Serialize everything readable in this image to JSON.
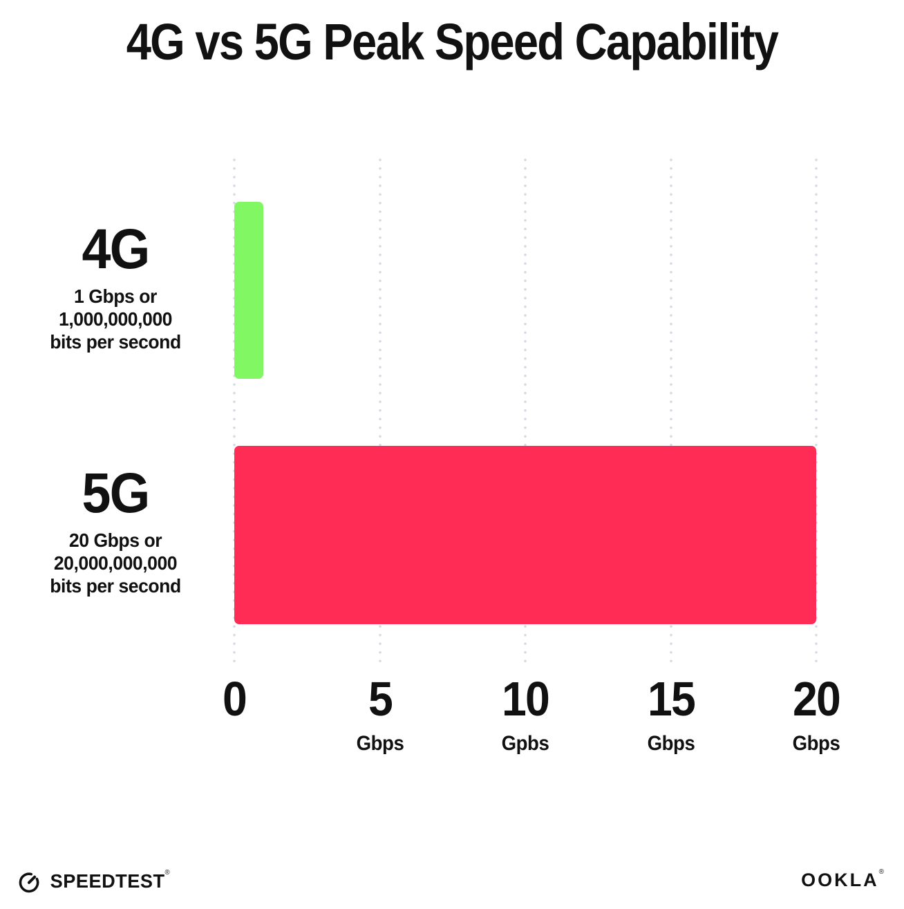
{
  "title": "4G vs 5G Peak Speed Capability",
  "chart_data": {
    "type": "bar",
    "orientation": "horizontal",
    "title": "4G vs 5G Peak Speed Capability",
    "xlim": [
      0,
      20
    ],
    "x_unit": "Gbps",
    "grid": "dotted vertical gridlines at 0, 5, 10, 15, 20",
    "legend": "none",
    "categories": [
      "4G",
      "5G"
    ],
    "values": [
      1,
      20
    ],
    "rows": [
      {
        "name": "4G",
        "desc_line1": "1 Gbps or",
        "desc_line2": "1,000,000,000",
        "desc_line3": "bits per second",
        "value": 1,
        "color": "#80f763"
      },
      {
        "name": "5G",
        "desc_line1": "20 Gbps or",
        "desc_line2": "20,000,000,000",
        "desc_line3": "bits per second",
        "value": 20,
        "color": "#ff2d55"
      }
    ],
    "x_ticks": [
      {
        "value": "0",
        "unit": ""
      },
      {
        "value": "5",
        "unit": "Gbps"
      },
      {
        "value": "10",
        "unit": "Gpbs"
      },
      {
        "value": "15",
        "unit": "Gbps"
      },
      {
        "value": "20",
        "unit": "Gbps"
      }
    ]
  },
  "footer": {
    "speedtest_label": "SPEEDTEST",
    "speedtest_mark": "®",
    "ookla_label": "OOKLA",
    "ookla_mark": "®"
  },
  "colors": {
    "bar_4g": "#80f763",
    "bar_5g": "#ff2d55",
    "gridline": "#d8dbe5",
    "text": "#111111",
    "background": "#ffffff"
  }
}
